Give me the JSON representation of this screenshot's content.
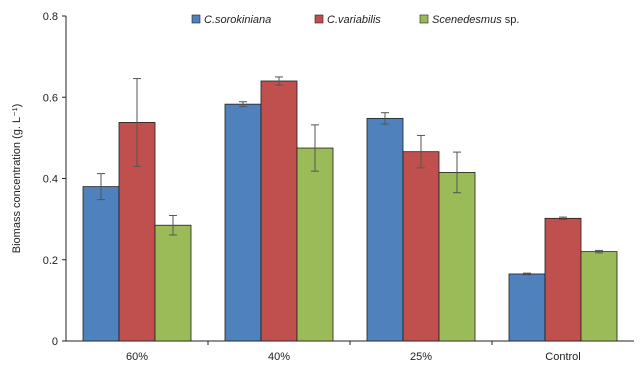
{
  "chart_data": {
    "type": "bar",
    "categories": [
      "60%",
      "40%",
      "25%",
      "Control"
    ],
    "series": [
      {
        "name": "C.sorokiniana",
        "values": [
          0.38,
          0.583,
          0.548,
          0.165
        ],
        "errors": [
          0.032,
          0.006,
          0.014,
          0.002
        ],
        "color": "#4f81bd"
      },
      {
        "name": "C.variabilis",
        "values": [
          0.538,
          0.64,
          0.466,
          0.302
        ],
        "errors": [
          0.108,
          0.01,
          0.04,
          0.003
        ],
        "color": "#c0504d"
      },
      {
        "name": "Scenedesmus sp.",
        "name_italic": "Scenedesmus",
        "name_suffix": " sp.",
        "values": [
          0.285,
          0.475,
          0.415,
          0.22
        ],
        "errors": [
          0.024,
          0.057,
          0.05,
          0.003
        ],
        "color": "#9bbb59"
      }
    ],
    "ylabel": "Biomass concentration (g. L⁻¹)",
    "ylim": [
      0,
      0.8
    ],
    "yticks": [
      "0",
      "0.2",
      "0.4",
      "0.6",
      "0.8"
    ],
    "legend_position": "top",
    "grid": false
  }
}
